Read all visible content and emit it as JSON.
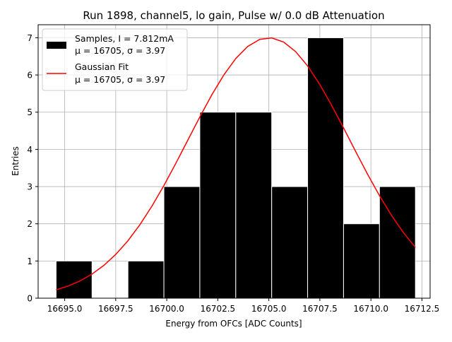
{
  "chart_data": {
    "type": "bar",
    "title": "Run 1898, channel5, lo gain, Pulse w/ 0.0 dB Attenuation",
    "xlabel": "Energy from OFCs [ADC Counts]",
    "ylabel": "Entries",
    "xlim": [
      16693.7,
      16712.9
    ],
    "ylim": [
      0,
      7.35
    ],
    "grid": true,
    "legend_position": "top-left",
    "xticks": [
      16695.0,
      16697.5,
      16700.0,
      16702.5,
      16705.0,
      16707.5,
      16710.0,
      16712.5
    ],
    "xtick_labels": [
      "16695.0",
      "16697.5",
      "16700.0",
      "16702.5",
      "16705.0",
      "16707.5",
      "16710.0",
      "16712.5"
    ],
    "yticks": [
      0,
      1,
      2,
      3,
      4,
      5,
      6,
      7
    ],
    "ytick_labels": [
      "0",
      "1",
      "2",
      "3",
      "4",
      "5",
      "6",
      "7"
    ],
    "bin_edges": [
      16694.58,
      16696.34,
      16698.1,
      16699.86,
      16701.62,
      16703.38,
      16705.14,
      16706.9,
      16708.66,
      16710.42,
      16712.18
    ],
    "values": [
      1,
      0,
      1,
      3,
      5,
      5,
      3,
      7,
      2,
      3
    ],
    "fit": {
      "mu": 16705,
      "sigma": 3.97,
      "amplitude": 7.0,
      "x_range": [
        16694.58,
        16712.18
      ]
    },
    "series": [
      {
        "name": "Samples, I = 7.812mA",
        "name_line2": "μ = 16705, σ = 3.97",
        "color": "#000000",
        "kind": "histogram"
      },
      {
        "name": "Gaussian Fit",
        "name_line2": "μ = 16705, σ = 3.97",
        "color": "#ff0000",
        "kind": "line"
      }
    ]
  }
}
